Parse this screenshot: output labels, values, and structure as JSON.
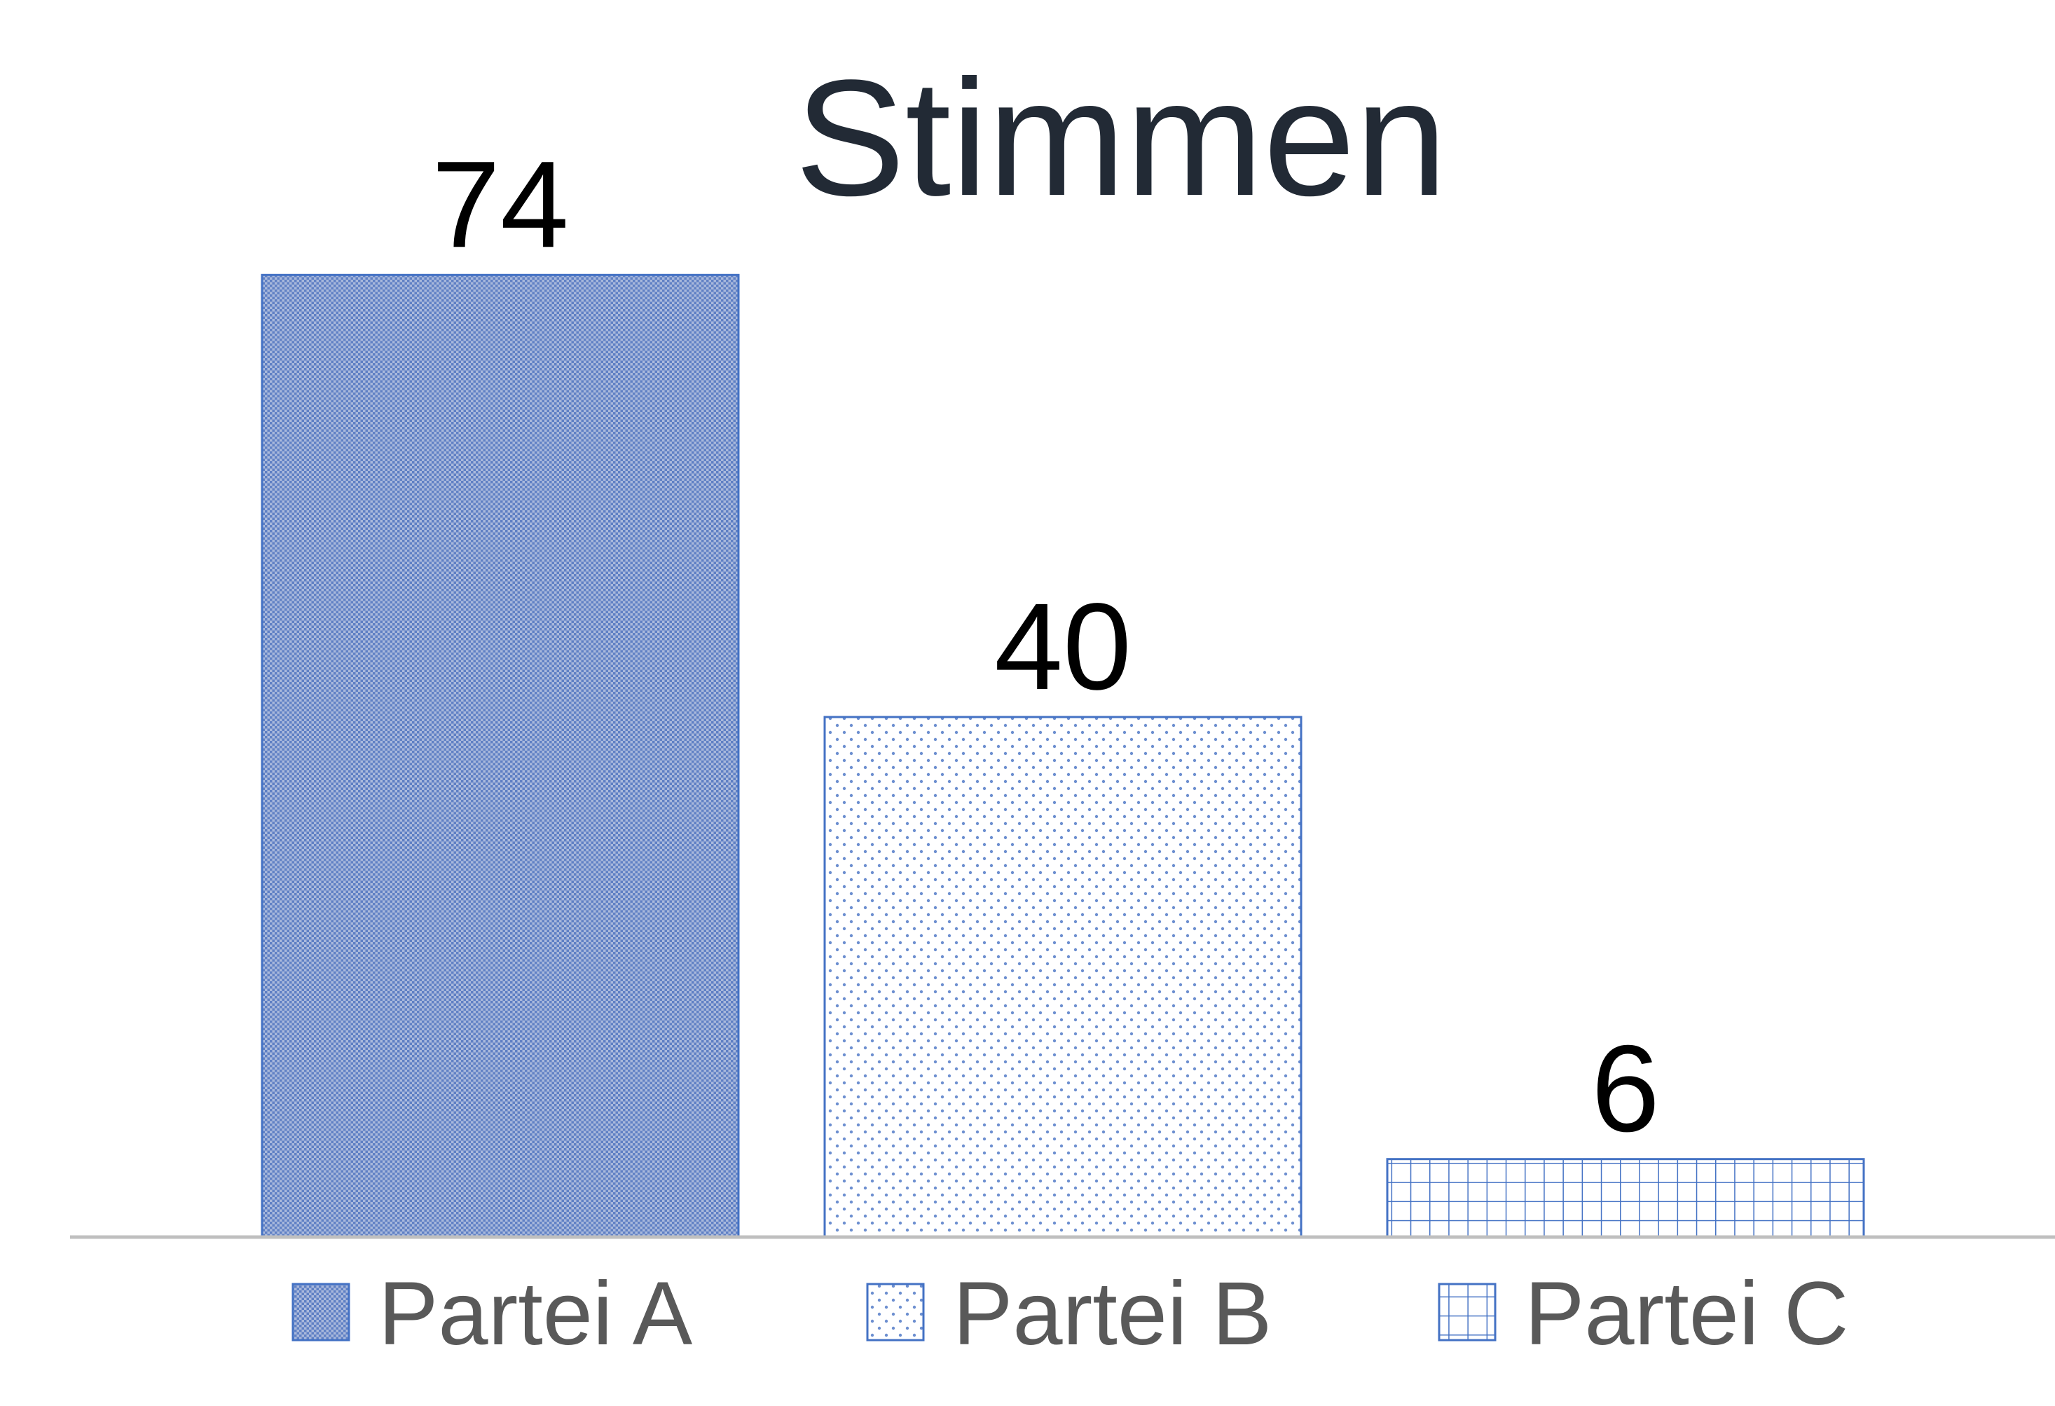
{
  "chart_data": {
    "type": "bar",
    "title": "Stimmen",
    "categories": [
      "Partei A",
      "Partei B",
      "Partei C"
    ],
    "values": [
      74,
      40,
      6
    ],
    "ylim": [
      0,
      80
    ],
    "grid": false,
    "legend_position": "bottom",
    "series": [
      {
        "name": "Partei A",
        "value": 74,
        "pattern": "fine-mesh"
      },
      {
        "name": "Partei B",
        "value": 40,
        "pattern": "dots"
      },
      {
        "name": "Partei C",
        "value": 6,
        "pattern": "grid"
      }
    ],
    "colors": {
      "bar_stroke": "#4472c4",
      "axis": "#bfbfbf",
      "title": "#222a35",
      "legend_text": "#595959",
      "value_text": "#000000"
    }
  }
}
